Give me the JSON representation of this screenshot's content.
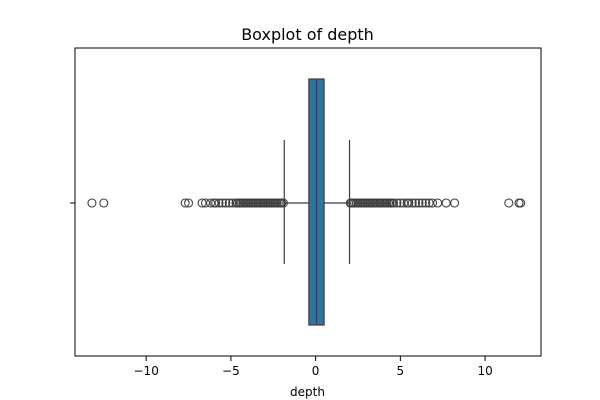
{
  "chart_data": {
    "type": "boxplot",
    "title": "Boxplot of depth",
    "xlabel": "depth",
    "ylabel": "",
    "orientation": "horizontal",
    "xlim": [
      -14.2,
      13.3
    ],
    "xticks": [
      -10,
      -5,
      0,
      5,
      10
    ],
    "xtick_labels": [
      "−10",
      "−5",
      "0",
      "5",
      "10"
    ],
    "grid": false,
    "box": {
      "q1": -0.4,
      "median": 0.05,
      "q3": 0.5,
      "whisker_low": -1.85,
      "whisker_high": 2.0,
      "color": "#3274a1"
    },
    "outliers": [
      -13.2,
      -12.5,
      -7.7,
      -7.5,
      -6.7,
      -6.5,
      -6.2,
      -6.0,
      -5.9,
      -5.7,
      -5.5,
      -5.3,
      -5.1,
      -4.9,
      -4.7,
      -4.6,
      -4.5,
      -4.4,
      -4.3,
      -4.2,
      -4.1,
      -4.0,
      -3.9,
      -3.8,
      -3.7,
      -3.6,
      -3.5,
      -3.4,
      -3.3,
      -3.2,
      -3.1,
      -3.0,
      -2.9,
      -2.8,
      -2.7,
      -2.6,
      -2.5,
      -2.4,
      -2.3,
      -2.2,
      -2.1,
      -2.0,
      -1.9,
      2.05,
      2.1,
      2.2,
      2.3,
      2.4,
      2.5,
      2.6,
      2.7,
      2.8,
      2.9,
      3.0,
      3.1,
      3.2,
      3.3,
      3.4,
      3.5,
      3.6,
      3.7,
      3.8,
      3.9,
      4.0,
      4.1,
      4.2,
      4.3,
      4.4,
      4.5,
      4.6,
      4.8,
      5.0,
      5.2,
      5.4,
      5.5,
      5.7,
      5.9,
      6.1,
      6.3,
      6.5,
      6.7,
      6.9,
      7.2,
      7.7,
      8.2,
      11.4,
      12.0,
      12.1
    ]
  }
}
